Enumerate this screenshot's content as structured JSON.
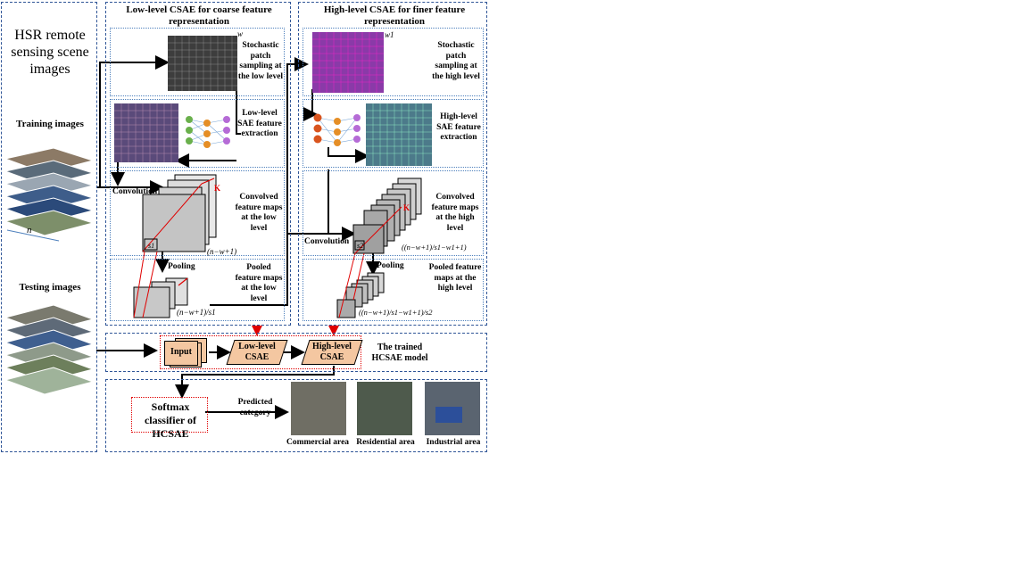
{
  "left_panel": {
    "title": "HSR remote sensing scene images",
    "training_label": "Training images",
    "testing_label": "Testing images",
    "n_label": "n"
  },
  "low_level": {
    "title": "Low-level CSAE for coarse feature representation",
    "sampling_label": "Stochastic patch sampling at the low level",
    "w_label": "w",
    "sae_label": "Low-level SAE feature extraction",
    "convolution_label": "Convolution",
    "k_label": "K",
    "convolved_label": "Convolved feature maps at the low level",
    "convolved_size": "(n−w+1)",
    "s1_label": "s1",
    "pooling_label": "Pooling",
    "pooled_label": "Pooled feature maps at the low level",
    "pooled_size": "(n−w+1)/s1"
  },
  "high_level": {
    "title": "High-level CSAE for finer feature representation",
    "sampling_label": "Stochastic patch sampling at the high level",
    "w1_label": "w1",
    "sae_label": "High-level SAE feature extraction",
    "convolution_label": "Convolution",
    "k_label": "K",
    "convolved_label": "Convolved feature maps at the high level",
    "convolved_size": "((n−w+1)/s1−w1+1)",
    "s2_label": "s2",
    "pooling_label": "Pooling",
    "pooled_label": "Pooled feature maps at the high level",
    "pooled_size": "((n−w+1)/s1−w1+1)/s2"
  },
  "model": {
    "input_label": "Input",
    "low_label": "Low-level CSAE",
    "high_label": "High-level CSAE",
    "trained_label": "The trained HCSAE model"
  },
  "classifier": {
    "softmax_label": "Softmax classifier of HCSAE",
    "predicted_label": "Predicted category",
    "categories": [
      "Commercial area",
      "Residential area",
      "Industrial area"
    ]
  },
  "colors": {
    "frame": "#2f5597",
    "accent_red": "#e00000",
    "model_fill": "#f4c7a1"
  }
}
